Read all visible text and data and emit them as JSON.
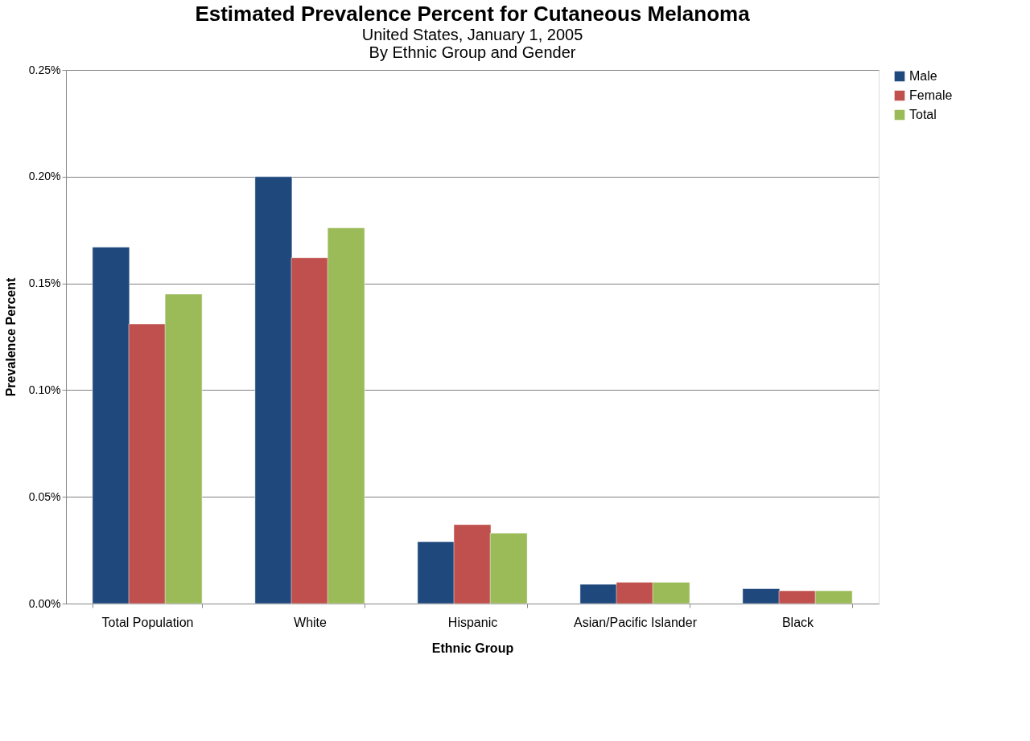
{
  "chart_data": {
    "type": "bar",
    "title": "Estimated Prevalence Percent for Cutaneous Melanoma",
    "subtitle": "United States, January 1, 2005\nBy Ethnic Group and Gender",
    "xlabel": "Ethnic Group",
    "ylabel": "Prevalence Percent",
    "categories": [
      "Total Population",
      "White",
      "Hispanic",
      "Asian/Pacific Islander",
      "Black"
    ],
    "series": [
      {
        "name": "Male",
        "color": "#1f497d",
        "values": [
          0.167,
          0.2,
          0.029,
          0.009,
          0.007
        ]
      },
      {
        "name": "Female",
        "color": "#c0504d",
        "values": [
          0.131,
          0.162,
          0.037,
          0.01,
          0.006
        ]
      },
      {
        "name": "Total",
        "color": "#9bbb59",
        "values": [
          0.145,
          0.176,
          0.033,
          0.01,
          0.006
        ]
      }
    ],
    "ylim": [
      0,
      0.25
    ],
    "yticks": [
      {
        "value": 0,
        "label": "0.00%"
      },
      {
        "value": 0.05,
        "label": "0.05%"
      },
      {
        "value": 0.1,
        "label": "0.10%"
      },
      {
        "value": 0.15,
        "label": "0.15%"
      },
      {
        "value": 0.2,
        "label": "0.20%"
      },
      {
        "value": 0.25,
        "label": "0.25%"
      }
    ],
    "grid": "y",
    "legend": "right"
  }
}
